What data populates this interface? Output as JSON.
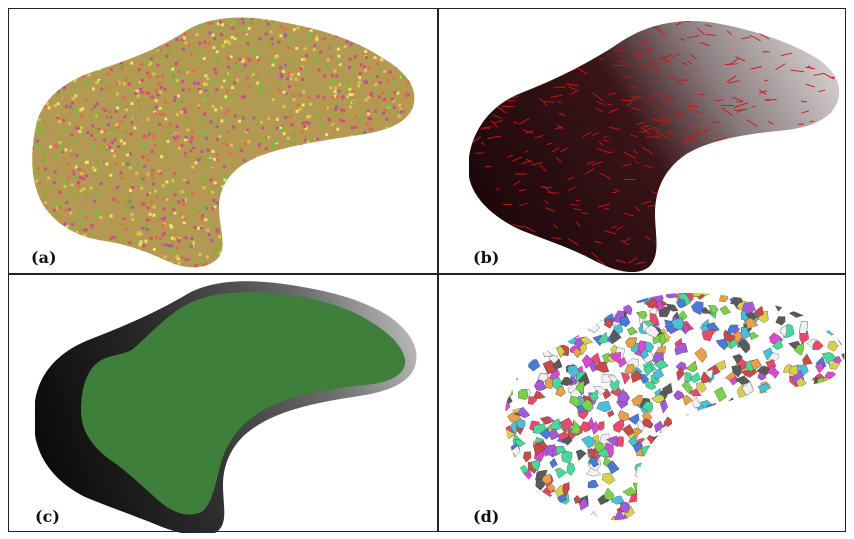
{
  "panels": [
    {
      "id": "a",
      "label": "(a)"
    },
    {
      "id": "b",
      "label": "(b)"
    },
    {
      "id": "c",
      "label": "(c)"
    },
    {
      "id": "d",
      "label": "(d)"
    }
  ],
  "colors": {
    "a_base": "#b39a52",
    "a_palette": [
      "#e0c14b",
      "#d64a7e",
      "#6bbf45",
      "#c9875a",
      "#f0e070",
      "#b05898",
      "#e36a4a",
      "#8fa63e"
    ],
    "b_dark": "#2a0c10",
    "b_light": "#c9c0c0",
    "b_streams": "#d01414",
    "c_dark": "#101010",
    "c_grey": "#9a9a9a",
    "c_green": "#3e7f3b",
    "d_palette": [
      "#e84a6a",
      "#4ac0d8",
      "#7ad14a",
      "#d8d04a",
      "#a45ad8",
      "#4a7ad8",
      "#e8a04a",
      "#5a5a5a",
      "#d84ad0",
      "#4ad89a",
      "#f0f0f0",
      "#c84a4a"
    ]
  }
}
